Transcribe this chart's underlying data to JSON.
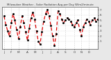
{
  "title": "Milwaukee Weather - Solar Radiation Avg per Day W/m2/minute",
  "ylim": [
    -0.5,
    7.5
  ],
  "xlim": [
    0,
    53
  ],
  "bg_color": "#e8e8e8",
  "plot_bg": "#ffffff",
  "line_color": "#dd0000",
  "marker_color": "#000000",
  "values": [
    5.8,
    4.2,
    3.0,
    2.0,
    4.5,
    6.2,
    5.0,
    3.2,
    1.5,
    3.8,
    5.8,
    4.5,
    2.8,
    1.2,
    3.5,
    5.5,
    6.5,
    5.2,
    3.0,
    1.0,
    0.5,
    2.8,
    4.8,
    6.2,
    7.0,
    5.8,
    4.0,
    2.0,
    0.2,
    2.5,
    6.8,
    6.2,
    5.2,
    4.5,
    5.0,
    5.5,
    5.2,
    4.8,
    4.2,
    3.8,
    4.5,
    5.0,
    3.2,
    2.0,
    3.8,
    4.5,
    5.2,
    4.8,
    4.2,
    5.0,
    5.5,
    4.8,
    5.2
  ],
  "x_tick_positions": [
    1,
    5,
    9,
    14,
    18,
    22,
    27,
    31,
    35,
    40,
    44,
    48
  ],
  "x_tick_labels": [
    "J",
    "F",
    "M",
    "A",
    "M",
    "J",
    "J",
    "A",
    "S",
    "O",
    "N",
    "D"
  ],
  "vgrid_positions": [
    1,
    5,
    9,
    14,
    18,
    22,
    27,
    31,
    35,
    40,
    44,
    48
  ],
  "yticks": [
    1,
    2,
    3,
    4,
    5,
    6,
    7
  ],
  "ytick_labels": [
    "1",
    "2",
    "3",
    "4",
    "5",
    "6",
    "7"
  ]
}
